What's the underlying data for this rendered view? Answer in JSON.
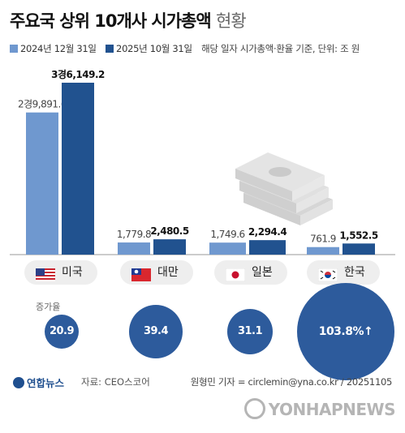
{
  "title": "주요국 상위 10개사 시가총액",
  "title_sub": "현황",
  "legend": {
    "series1": "2024년 12월 31일",
    "series2": "2025년 10월 31일",
    "note": "해당 일자 시가총액·환율 기준, 단위: 조 원",
    "color1": "#6f98cf",
    "color2": "#21528f"
  },
  "chart_data": {
    "type": "bar",
    "categories": [
      "미국",
      "대만",
      "일본",
      "한국"
    ],
    "series": [
      {
        "name": "2024년 12월 31일",
        "values": [
          29891.6,
          1779.8,
          1749.6,
          761.9
        ],
        "labels": [
          "2경9,891.6",
          "1,779.8",
          "1,749.6",
          "761.9"
        ]
      },
      {
        "name": "2025년 10월 31일",
        "values": [
          36149.2,
          2480.5,
          2294.4,
          1552.5
        ],
        "labels": [
          "3경6,149.2",
          "2,480.5",
          "2,294.4",
          "1,552.5"
        ]
      }
    ],
    "growth_label": "증가율",
    "growth": [
      "20.9",
      "39.4",
      "31.1",
      "103.8%↑"
    ],
    "growth_values": [
      20.9,
      39.4,
      31.1,
      103.8
    ]
  },
  "countries": [
    {
      "name": "미국",
      "flag": "us-flag-icon"
    },
    {
      "name": "대만",
      "flag": "taiwan-flag-icon"
    },
    {
      "name": "일본",
      "flag": "japan-flag-icon"
    },
    {
      "name": "한국",
      "flag": "korea-flag-icon"
    }
  ],
  "footer": {
    "logo": "연합뉴스",
    "source": "자료: CEO스코어",
    "credit": "원형민 기자 = circlemin@yna.co.kr / 20251105",
    "watermark": "YONHAPNEWS"
  }
}
